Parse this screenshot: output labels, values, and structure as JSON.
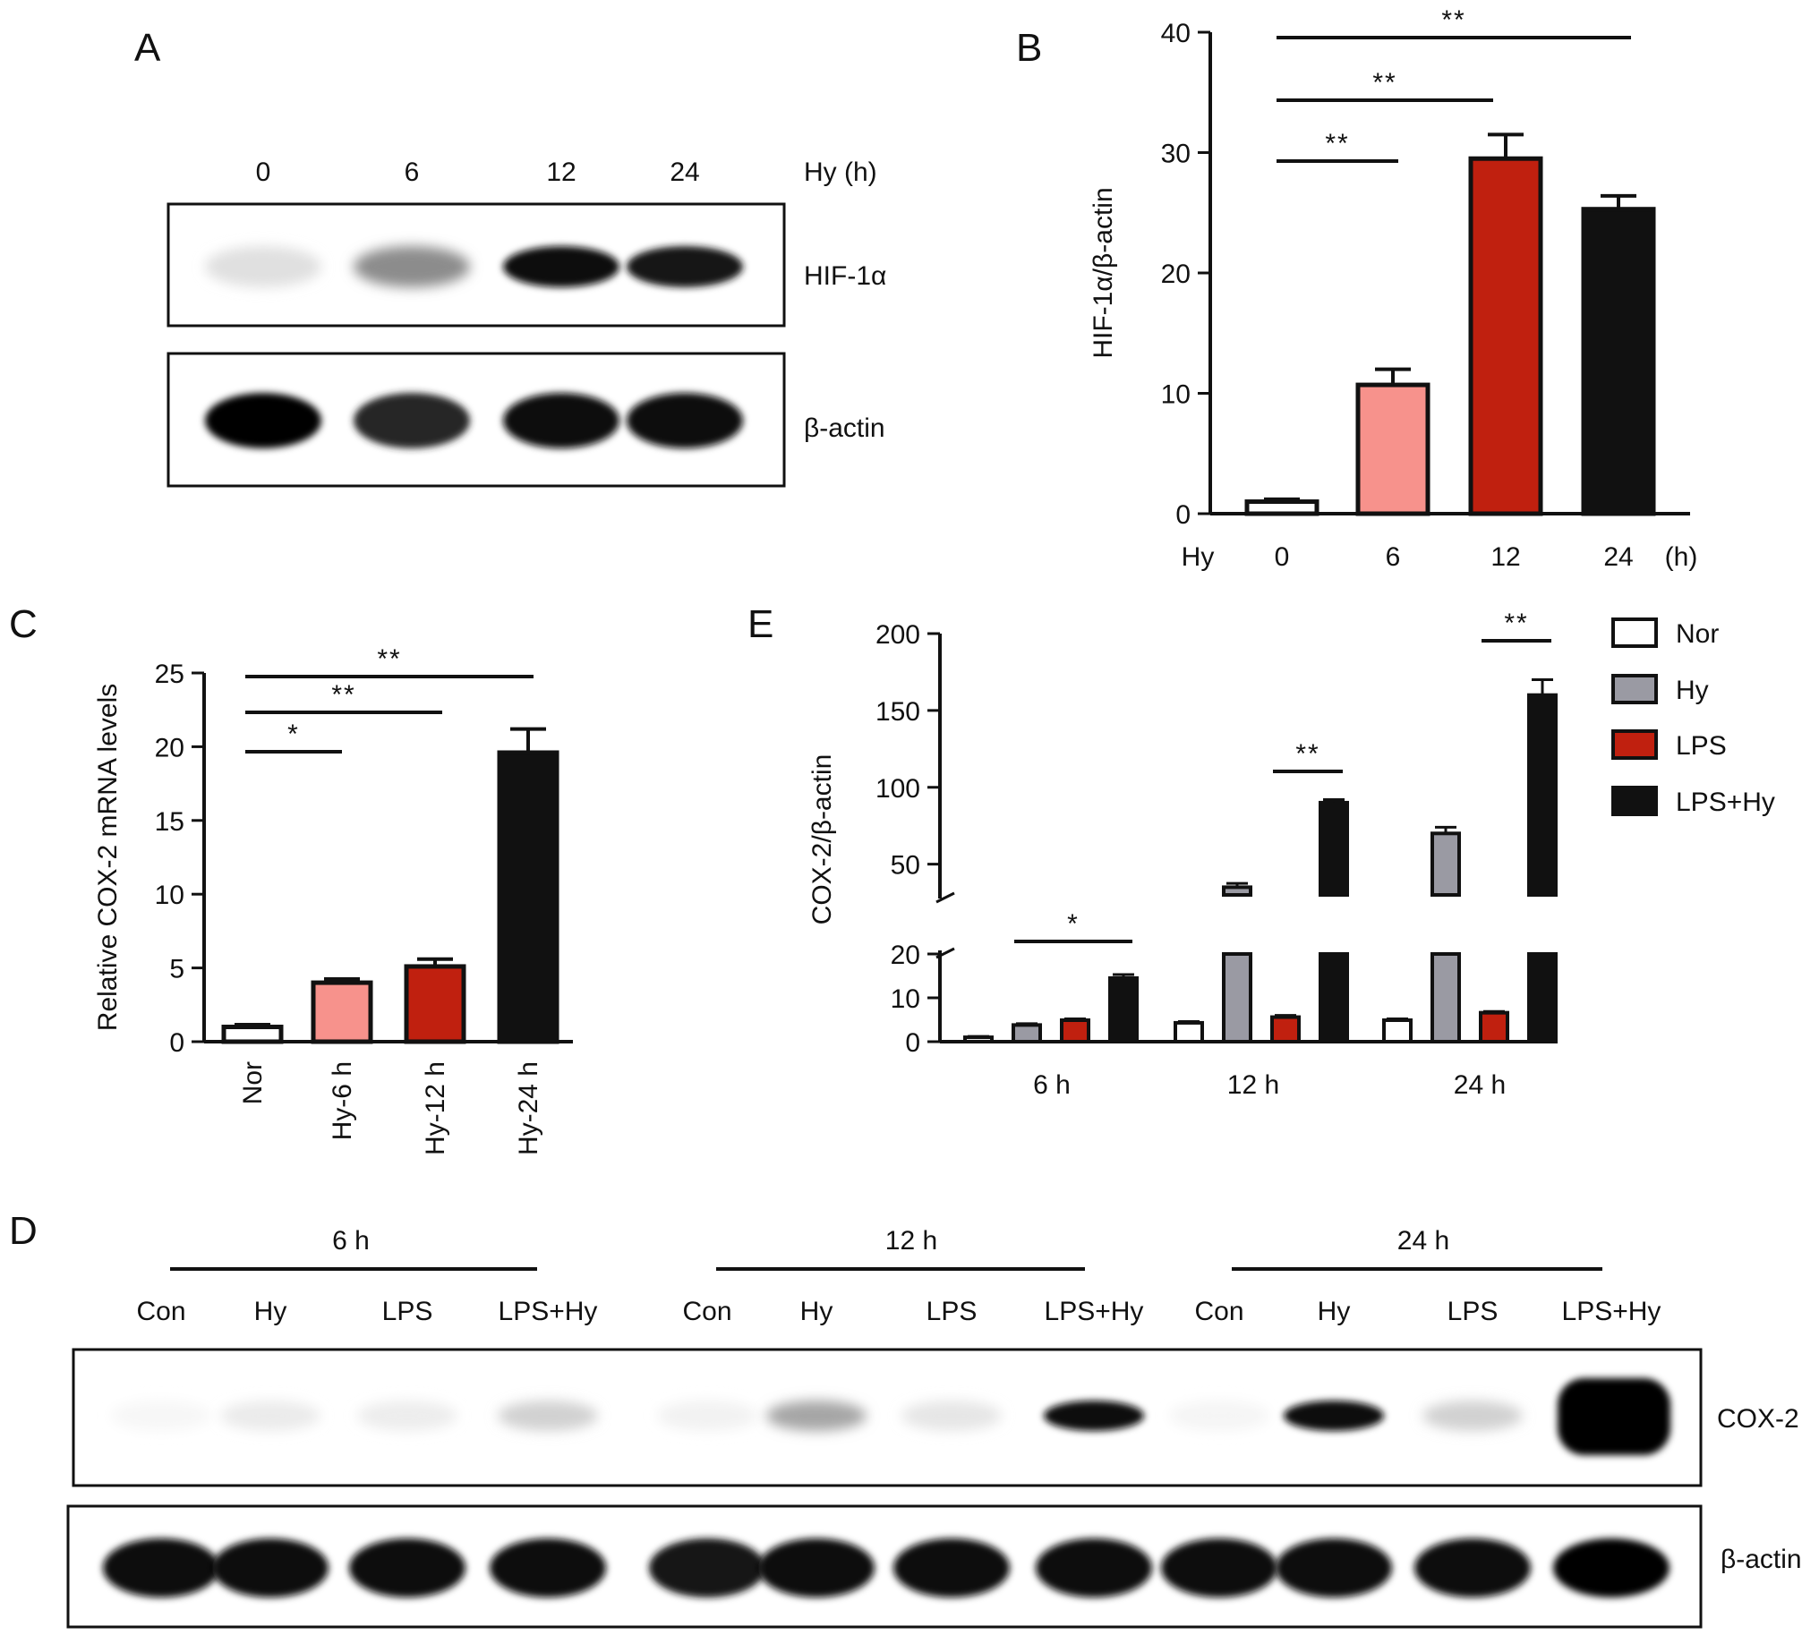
{
  "panels": {
    "A": {
      "label": "A",
      "lanes": [
        "0",
        "6",
        "12",
        "24"
      ],
      "lane_header": "Hy (h)",
      "blots": [
        {
          "name": "HIF-1α",
          "intensity": [
            0.12,
            0.45,
            0.95,
            0.9
          ]
        },
        {
          "name": "β-actin",
          "intensity": [
            0.98,
            0.85,
            0.97,
            0.96
          ]
        }
      ]
    },
    "B": {
      "label": "B"
    },
    "C": {
      "label": "C"
    },
    "D": {
      "label": "D",
      "groups": [
        {
          "label": "6 h",
          "lanes": [
            "Con",
            "Hy",
            "LPS",
            "LPS+Hy"
          ]
        },
        {
          "label": "12 h",
          "lanes": [
            "Con",
            "Hy",
            "LPS",
            "LPS+Hy"
          ]
        },
        {
          "label": "24 h",
          "lanes": [
            "Con",
            "Hy",
            "LPS",
            "LPS+Hy"
          ]
        }
      ],
      "blots": [
        {
          "name": "COX-2",
          "intensity": [
            0.03,
            0.08,
            0.07,
            0.18,
            0.05,
            0.35,
            0.1,
            0.95,
            0.04,
            0.95,
            0.18,
            1.0
          ]
        },
        {
          "name": "β-actin",
          "intensity": [
            0.97,
            0.96,
            0.95,
            0.94,
            0.93,
            0.96,
            0.95,
            0.97,
            0.96,
            0.97,
            0.96,
            0.98
          ]
        }
      ]
    },
    "E": {
      "label": "E"
    }
  },
  "colors": {
    "white_bar": "#ffffff",
    "pink": "#f7928c",
    "red": "#c0200f",
    "black": "#111111",
    "gray": "#9a9aa3"
  },
  "chart_data": [
    {
      "id": "B",
      "type": "bar",
      "categories": [
        "0",
        "6",
        "12",
        "24"
      ],
      "values": [
        1,
        10.7,
        29.5,
        25.3
      ],
      "errors": [
        0.2,
        1.3,
        2.0,
        1.1
      ],
      "bar_colors": [
        "#ffffff",
        "#f7928c",
        "#c0200f",
        "#111111"
      ],
      "ylabel": "HIF-1α/β-actin",
      "xlabel_prefix": "Hy",
      "xlabel_suffix": "(h)",
      "ylim": [
        0,
        40
      ],
      "yticks": [
        0,
        10,
        20,
        30,
        40
      ],
      "significance": [
        {
          "from": 0,
          "to": 1,
          "label": "**"
        },
        {
          "from": 0,
          "to": 2,
          "label": "**"
        },
        {
          "from": 0,
          "to": 3,
          "label": "**"
        }
      ]
    },
    {
      "id": "C",
      "type": "bar",
      "categories": [
        "Nor",
        "Hy-6 h",
        "Hy-12 h",
        "Hy-24 h"
      ],
      "values": [
        1,
        4.0,
        5.1,
        19.6
      ],
      "errors": [
        0.15,
        0.25,
        0.5,
        1.6
      ],
      "bar_colors": [
        "#ffffff",
        "#f7928c",
        "#c0200f",
        "#111111"
      ],
      "ylabel": "Relative COX-2 mRNA levels",
      "ylim": [
        0,
        25
      ],
      "yticks": [
        0,
        5,
        10,
        15,
        20,
        25
      ],
      "significance": [
        {
          "from": 0,
          "to": 1,
          "label": "*"
        },
        {
          "from": 0,
          "to": 2,
          "label": "**"
        },
        {
          "from": 0,
          "to": 3,
          "label": "**"
        }
      ]
    },
    {
      "id": "E",
      "type": "bar",
      "categories": [
        "6 h",
        "12 h",
        "24 h"
      ],
      "ylabel": "COX-2/β-actin",
      "broken_axis": {
        "lower": [
          0,
          20
        ],
        "upper": [
          30,
          200
        ]
      },
      "yticks_lower": [
        0,
        10,
        20
      ],
      "yticks_upper": [
        50,
        100,
        150,
        200
      ],
      "series": [
        {
          "name": "Nor",
          "color": "#ffffff",
          "values": [
            1,
            4.3,
            4.9
          ],
          "errors": [
            0.2,
            0.3,
            0.3
          ]
        },
        {
          "name": "Hy",
          "color": "#9a9aa3",
          "values": [
            3.8,
            35,
            70
          ],
          "errors": [
            0.3,
            2.5,
            4
          ]
        },
        {
          "name": "LPS",
          "color": "#c0200f",
          "values": [
            4.9,
            5.6,
            6.6
          ],
          "errors": [
            0.3,
            0.4,
            0.3
          ]
        },
        {
          "name": "LPS+Hy",
          "color": "#111111",
          "values": [
            14.5,
            90,
            160
          ],
          "errors": [
            0.8,
            2,
            10
          ]
        }
      ],
      "significance": [
        {
          "group": 0,
          "from_series": 1,
          "to_series": 3,
          "label": "*"
        },
        {
          "group": 1,
          "from_series": 2,
          "to_series": 3,
          "label": "**"
        },
        {
          "group": 2,
          "from_series": 2,
          "to_series": 3,
          "label": "**"
        }
      ],
      "legend": "right"
    }
  ]
}
